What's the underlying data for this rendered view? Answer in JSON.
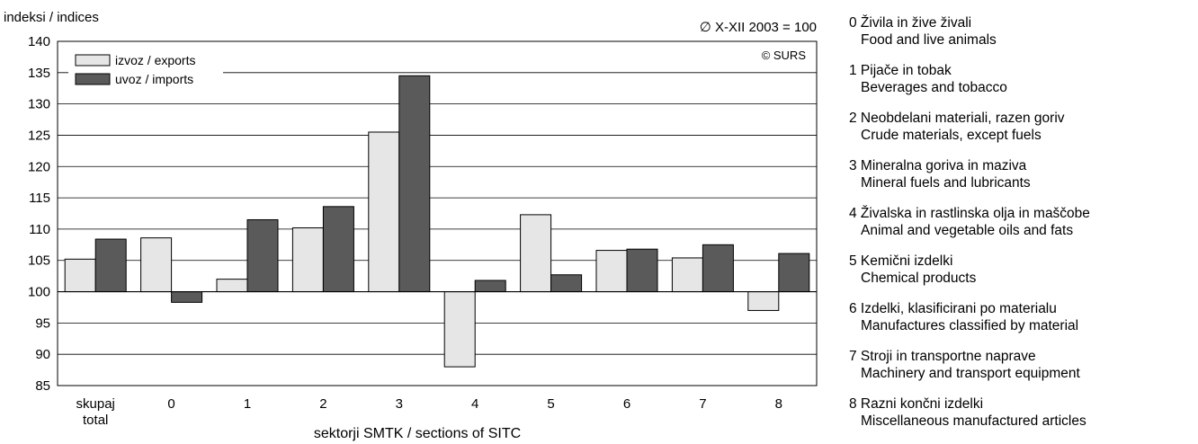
{
  "chart_data": {
    "type": "bar",
    "title": "",
    "ylabel": "indeksi / indices",
    "xlabel": "sektorji SMTK / sections of SITC",
    "base_note": "∅ X-XII 2003 = 100",
    "copyright": "© SURS",
    "ylim": [
      85,
      140
    ],
    "ytick_step": 5,
    "baseline": 100,
    "grid": true,
    "legend_position": "top-left",
    "categories": [
      [
        "skupaj",
        "total"
      ],
      [
        "0"
      ],
      [
        "1"
      ],
      [
        "2"
      ],
      [
        "3"
      ],
      [
        "4"
      ],
      [
        "5"
      ],
      [
        "6"
      ],
      [
        "7"
      ],
      [
        "8"
      ]
    ],
    "series": [
      {
        "name": "izvoz / exports",
        "color": "#e6e6e6",
        "values": [
          105.2,
          108.6,
          102.0,
          110.2,
          125.5,
          88.0,
          112.3,
          106.6,
          105.4,
          97.0
        ]
      },
      {
        "name": "uvoz / imports",
        "color": "#5a5a5a",
        "values": [
          108.4,
          98.3,
          111.5,
          113.6,
          134.5,
          101.8,
          102.7,
          106.8,
          107.5,
          106.1
        ]
      }
    ]
  },
  "sitc_sections": [
    {
      "sl": "0 Živila in žive živali",
      "en": "Food and live animals"
    },
    {
      "sl": "1 Pijače in tobak",
      "en": "Beverages and tobacco"
    },
    {
      "sl": "2 Neobdelani materiali, razen goriv",
      "en": "Crude materials, except fuels"
    },
    {
      "sl": "3 Mineralna goriva in maziva",
      "en": "Mineral fuels and lubricants"
    },
    {
      "sl": "4 Živalska in rastlinska olja in maščobe",
      "en": "Animal and vegetable oils and fats"
    },
    {
      "sl": "5 Kemični izdelki",
      "en": "Chemical products"
    },
    {
      "sl": "6 Izdelki, klasificirani po materialu",
      "en": "Manufactures classified by material"
    },
    {
      "sl": "7 Stroji in transportne naprave",
      "en": "Machinery and transport equipment"
    },
    {
      "sl": "8 Razni končni izdelki",
      "en": "Miscellaneous manufactured articles"
    }
  ]
}
